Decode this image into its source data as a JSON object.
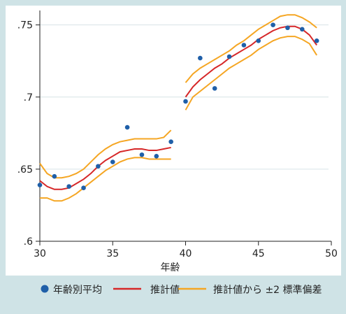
{
  "colors": {
    "background": "#cfe3e6",
    "plot_background": "#ffffff",
    "grid": "#d7e3e6",
    "dots": "#1f5fa8",
    "fit": "#d62728",
    "band": "#f5a623"
  },
  "chart_data": {
    "type": "scatter",
    "title": "",
    "xlabel": "年齢",
    "ylabel": "",
    "xlim": [
      30,
      50
    ],
    "ylim": [
      0.6,
      0.76
    ],
    "x_ticks": [
      30,
      35,
      40,
      45,
      50
    ],
    "x_tick_labels": [
      "30",
      "35",
      "40",
      "45",
      "50"
    ],
    "y_ticks": [
      0.6,
      0.65,
      0.7,
      0.75
    ],
    "y_tick_labels": [
      ".6",
      ".65",
      ".7",
      ".75"
    ],
    "grid": true,
    "legend_position": "bottom",
    "legend": [
      "年齢別平均",
      "推計値",
      "推計値から ±2 標準偏差"
    ],
    "series": [
      {
        "name": "年齢別平均",
        "kind": "scatter",
        "x": [
          30,
          31,
          32,
          33,
          34,
          35,
          36,
          37,
          38,
          39,
          40,
          41,
          42,
          43,
          44,
          45,
          46,
          47,
          48,
          49
        ],
        "y": [
          0.639,
          0.645,
          0.638,
          0.637,
          0.652,
          0.655,
          0.679,
          0.66,
          0.659,
          0.669,
          0.697,
          0.727,
          0.706,
          0.728,
          0.736,
          0.739,
          0.75,
          0.748,
          0.747,
          0.739
        ]
      },
      {
        "name": "推計値",
        "kind": "line",
        "segments": [
          {
            "x": [
              30,
              30.5,
              31,
              31.5,
              32,
              32.5,
              33,
              33.5,
              34,
              34.5,
              35,
              35.5,
              36,
              36.5,
              37,
              37.5,
              38,
              38.5,
              39
            ],
            "y": [
              0.642,
              0.638,
              0.636,
              0.636,
              0.637,
              0.64,
              0.643,
              0.647,
              0.652,
              0.656,
              0.659,
              0.662,
              0.663,
              0.664,
              0.664,
              0.663,
              0.663,
              0.664,
              0.665
            ]
          },
          {
            "x": [
              40,
              40.5,
              41,
              41.5,
              42,
              42.5,
              43,
              43.5,
              44,
              44.5,
              45,
              45.5,
              46,
              46.5,
              47,
              47.5,
              48,
              48.5,
              49
            ],
            "y": [
              0.7,
              0.707,
              0.712,
              0.716,
              0.72,
              0.723,
              0.727,
              0.73,
              0.733,
              0.736,
              0.74,
              0.743,
              0.746,
              0.748,
              0.749,
              0.749,
              0.747,
              0.743,
              0.736
            ]
          }
        ]
      },
      {
        "name": "推計値から ±2 標準偏差",
        "kind": "line",
        "segments": [
          {
            "x": [
              30,
              30.5,
              31,
              31.5,
              32,
              32.5,
              33,
              33.5,
              34,
              34.5,
              35,
              35.5,
              36,
              36.5,
              37,
              37.5,
              38,
              38.5,
              39
            ],
            "y": [
              0.654,
              0.647,
              0.644,
              0.644,
              0.645,
              0.647,
              0.65,
              0.655,
              0.66,
              0.664,
              0.667,
              0.669,
              0.67,
              0.671,
              0.671,
              0.671,
              0.671,
              0.672,
              0.677
            ]
          },
          {
            "x": [
              30,
              30.5,
              31,
              31.5,
              32,
              32.5,
              33,
              33.5,
              34,
              34.5,
              35,
              35.5,
              36,
              36.5,
              37,
              37.5,
              38,
              38.5,
              39
            ],
            "y": [
              0.63,
              0.63,
              0.628,
              0.628,
              0.63,
              0.633,
              0.637,
              0.641,
              0.645,
              0.649,
              0.652,
              0.655,
              0.657,
              0.658,
              0.658,
              0.657,
              0.657,
              0.657,
              0.657
            ]
          },
          {
            "x": [
              40,
              40.5,
              41,
              41.5,
              42,
              42.5,
              43,
              43.5,
              44,
              44.5,
              45,
              45.5,
              46,
              46.5,
              47,
              47.5,
              48,
              48.5,
              49
            ],
            "y": [
              0.71,
              0.716,
              0.72,
              0.723,
              0.726,
              0.729,
              0.732,
              0.736,
              0.739,
              0.743,
              0.747,
              0.75,
              0.753,
              0.756,
              0.757,
              0.757,
              0.755,
              0.752,
              0.748
            ]
          },
          {
            "x": [
              40,
              40.5,
              41,
              41.5,
              42,
              42.5,
              43,
              43.5,
              44,
              44.5,
              45,
              45.5,
              46,
              46.5,
              47,
              47.5,
              48,
              48.5,
              49
            ],
            "y": [
              0.691,
              0.7,
              0.704,
              0.708,
              0.712,
              0.716,
              0.72,
              0.723,
              0.726,
              0.729,
              0.733,
              0.736,
              0.739,
              0.741,
              0.742,
              0.742,
              0.74,
              0.737,
              0.729
            ]
          }
        ]
      }
    ]
  }
}
